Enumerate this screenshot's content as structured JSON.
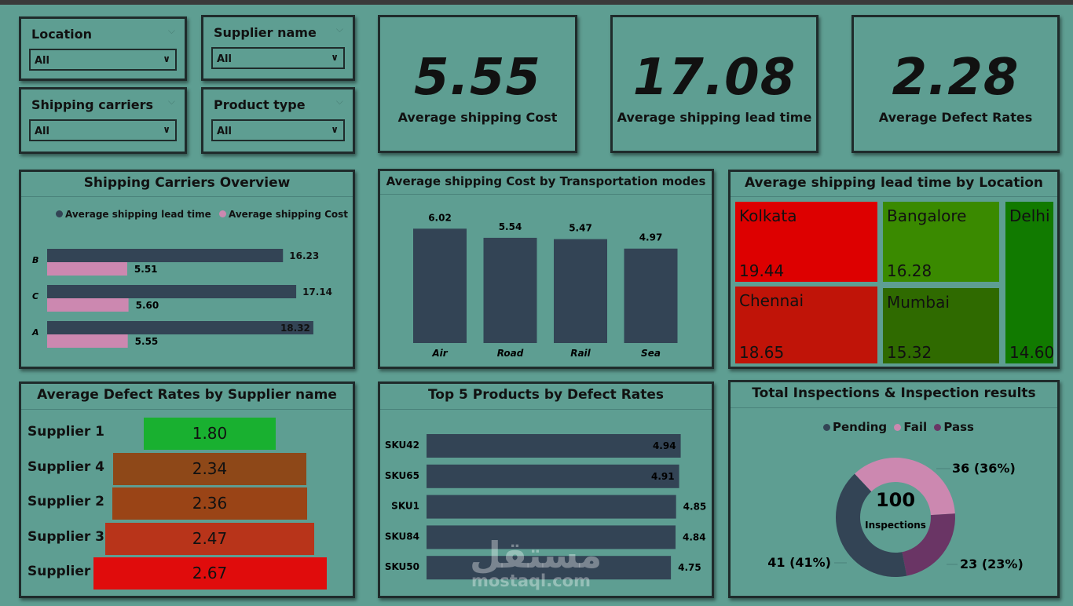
{
  "filters": [
    {
      "label": "Location",
      "value": "All"
    },
    {
      "label": "Supplier name",
      "value": "All"
    },
    {
      "label": "Shipping carriers",
      "value": "All"
    },
    {
      "label": "Product type",
      "value": "All"
    }
  ],
  "kpis": [
    {
      "value": "5.55",
      "label": "Average shipping Cost"
    },
    {
      "value": "17.08",
      "label": "Average shipping lead time"
    },
    {
      "value": "2.28",
      "label": "Average Defect Rates"
    }
  ],
  "carriers_chart": {
    "title": "Shipping Carriers Overview",
    "legend": [
      "Average shipping lead time",
      "Average shipping Cost"
    ],
    "colors": {
      "lead": "#334455",
      "cost": "#cc88b0"
    }
  },
  "transport_chart": {
    "title": "Average shipping Cost by Transportation modes",
    "color": "#334455"
  },
  "location_chart": {
    "title": "Average shipping lead time by Location",
    "tiles": [
      {
        "name": "Kolkata",
        "value": "19.44",
        "color": "#dd0000"
      },
      {
        "name": "Chennai",
        "value": "18.65",
        "color": "#c01408"
      },
      {
        "name": "Bangalore",
        "value": "16.28",
        "color": "#3a8a00"
      },
      {
        "name": "Mumbai",
        "value": "15.32",
        "color": "#2f6a00"
      },
      {
        "name": "Delhi",
        "value": "14.60",
        "color": "#117a00"
      }
    ]
  },
  "supplier_chart": {
    "title": "Average Defect Rates by Supplier name",
    "rows": [
      {
        "name": "Supplier 1",
        "value": "1.80",
        "color": "#19b030"
      },
      {
        "name": "Supplier 4",
        "value": "2.34",
        "color": "#8e4818"
      },
      {
        "name": "Supplier 2",
        "value": "2.36",
        "color": "#9a4416"
      },
      {
        "name": "Supplier 3",
        "value": "2.47",
        "color": "#b8341a"
      },
      {
        "name": "Supplier 5",
        "value": "2.67",
        "color": "#e00c0c"
      }
    ]
  },
  "products_chart": {
    "title": "Top 5 Products by Defect Rates",
    "color": "#334455"
  },
  "inspections_chart": {
    "title": "Total Inspections & Inspection results",
    "legend": [
      {
        "name": "Pending",
        "color": "#334455"
      },
      {
        "name": "Fail",
        "color": "#cc88b0"
      },
      {
        "name": "Pass",
        "color": "#6a3565"
      }
    ],
    "total": "100",
    "center_label": "Inspections",
    "labels": {
      "fail": "36 (36%)",
      "pass": "23 (23%)",
      "pending": "41 (41%)"
    }
  },
  "watermark": {
    "arabic": "مستقل",
    "latin": "mostaql.com"
  },
  "chart_data": [
    {
      "type": "bar",
      "title": "Shipping Carriers Overview",
      "orientation": "horizontal",
      "categories": [
        "B",
        "C",
        "A"
      ],
      "series": [
        {
          "name": "Average shipping lead time",
          "values": [
            16.23,
            17.14,
            18.32
          ]
        },
        {
          "name": "Average shipping Cost",
          "values": [
            5.51,
            5.6,
            5.55
          ]
        }
      ],
      "legend": "top"
    },
    {
      "type": "bar",
      "title": "Average shipping Cost by Transportation modes",
      "categories": [
        "Air",
        "Road",
        "Rail",
        "Sea"
      ],
      "values": [
        6.02,
        5.54,
        5.47,
        4.97
      ]
    },
    {
      "type": "heatmap",
      "title": "Average shipping lead time by Location",
      "categories": [
        "Kolkata",
        "Chennai",
        "Bangalore",
        "Mumbai",
        "Delhi"
      ],
      "values": [
        19.44,
        18.65,
        16.28,
        15.32,
        14.6
      ]
    },
    {
      "type": "bar",
      "title": "Average Defect Rates by Supplier name",
      "categories": [
        "Supplier 1",
        "Supplier 4",
        "Supplier 2",
        "Supplier 3",
        "Supplier 5"
      ],
      "values": [
        1.8,
        2.34,
        2.36,
        2.47,
        2.67
      ]
    },
    {
      "type": "bar",
      "title": "Top 5 Products by Defect Rates",
      "orientation": "horizontal",
      "categories": [
        "SKU42",
        "SKU65",
        "SKU1",
        "SKU84",
        "SKU50"
      ],
      "values": [
        4.94,
        4.91,
        4.85,
        4.84,
        4.75
      ]
    },
    {
      "type": "pie",
      "title": "Total Inspections & Inspection results",
      "categories": [
        "Pending",
        "Fail",
        "Pass"
      ],
      "values": [
        41,
        36,
        23
      ],
      "legend": "top"
    }
  ]
}
